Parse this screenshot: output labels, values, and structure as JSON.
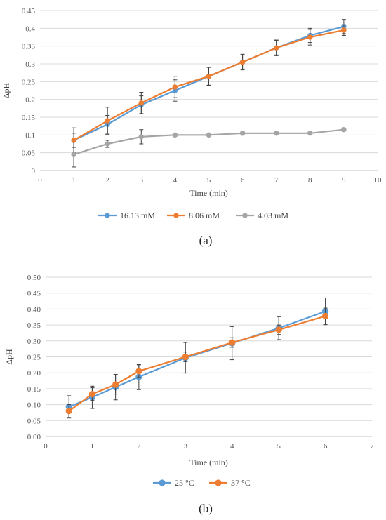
{
  "chart_data": [
    {
      "type": "line",
      "panel_label": "(a)",
      "xlabel": "Time (min)",
      "ylabel": "ΔpH",
      "xlim": [
        0,
        10
      ],
      "ylim": [
        0,
        0.45
      ],
      "x_ticks": [
        "0",
        "1",
        "2",
        "3",
        "4",
        "5",
        "6",
        "7",
        "8",
        "9",
        "10"
      ],
      "y_ticks": [
        "0",
        "0.05",
        "0.1",
        "0.15",
        "0.2",
        "0.25",
        "0.3",
        "0.35",
        "0.4",
        "0.45"
      ],
      "grid": "horizontal",
      "legend_position": "bottom",
      "series": [
        {
          "name": "16.13 mM",
          "color": "#5b9bd5",
          "x": [
            1,
            2,
            3,
            4,
            5,
            6,
            7,
            8,
            9
          ],
          "y": [
            0.085,
            0.13,
            0.185,
            0.225,
            0.265,
            0.305,
            0.345,
            0.38,
            0.405
          ],
          "err": [
            0.02,
            0.025,
            0.025,
            0.03,
            0.025,
            0.02,
            0.02,
            0.02,
            0.02
          ]
        },
        {
          "name": "8.06 mM",
          "color": "#ed7d31",
          "x": [
            1,
            2,
            3,
            4,
            5,
            6,
            7,
            8,
            9
          ],
          "y": [
            0.085,
            0.14,
            0.19,
            0.235,
            0.265,
            0.305,
            0.345,
            0.375,
            0.395
          ],
          "err": [
            0.035,
            0.038,
            0.03,
            0.03,
            0.025,
            0.022,
            0.022,
            0.022,
            0.015
          ]
        },
        {
          "name": "4.03 mM",
          "color": "#a5a5a5",
          "x": [
            1,
            2,
            3,
            4,
            5,
            6,
            7,
            8,
            9
          ],
          "y": [
            0.045,
            0.075,
            0.095,
            0.1,
            0.1,
            0.105,
            0.105,
            0.105,
            0.115
          ],
          "err": [
            0.035,
            0.01,
            0.02,
            0.004,
            0.003,
            0.003,
            0.003,
            0.003,
            0.003
          ]
        }
      ]
    },
    {
      "type": "line",
      "panel_label": "(b)",
      "xlabel": "Time (min)",
      "ylabel": "ΔpH",
      "xlim": [
        0,
        7
      ],
      "ylim": [
        0,
        0.5
      ],
      "x_ticks": [
        "0",
        "1",
        "2",
        "3",
        "4",
        "5",
        "6",
        "7"
      ],
      "y_ticks": [
        "0.00",
        "0.05",
        "0.10",
        "0.15",
        "0.20",
        "0.25",
        "0.30",
        "0.35",
        "0.40",
        "0.45",
        "0.50"
      ],
      "grid": "horizontal",
      "legend_position": "bottom",
      "series": [
        {
          "name": "25 °C",
          "color": "#5b9bd5",
          "x": [
            0.5,
            1,
            1.5,
            2,
            3,
            4,
            5,
            6
          ],
          "y": [
            0.093,
            0.123,
            0.155,
            0.187,
            0.247,
            0.293,
            0.34,
            0.393
          ],
          "err": [
            0.035,
            0.035,
            0.04,
            0.04,
            0.048,
            0.052,
            0.036,
            0.042
          ]
        },
        {
          "name": "37 °C",
          "color": "#ed7d31",
          "x": [
            0.5,
            1,
            1.5,
            2,
            3,
            4,
            5,
            6
          ],
          "y": [
            0.08,
            0.133,
            0.163,
            0.205,
            0.25,
            0.295,
            0.335,
            0.378
          ],
          "err": [
            0.02,
            0.02,
            0.03,
            0.02,
            0.015,
            0.015,
            0.015,
            0.025
          ]
        }
      ]
    }
  ]
}
